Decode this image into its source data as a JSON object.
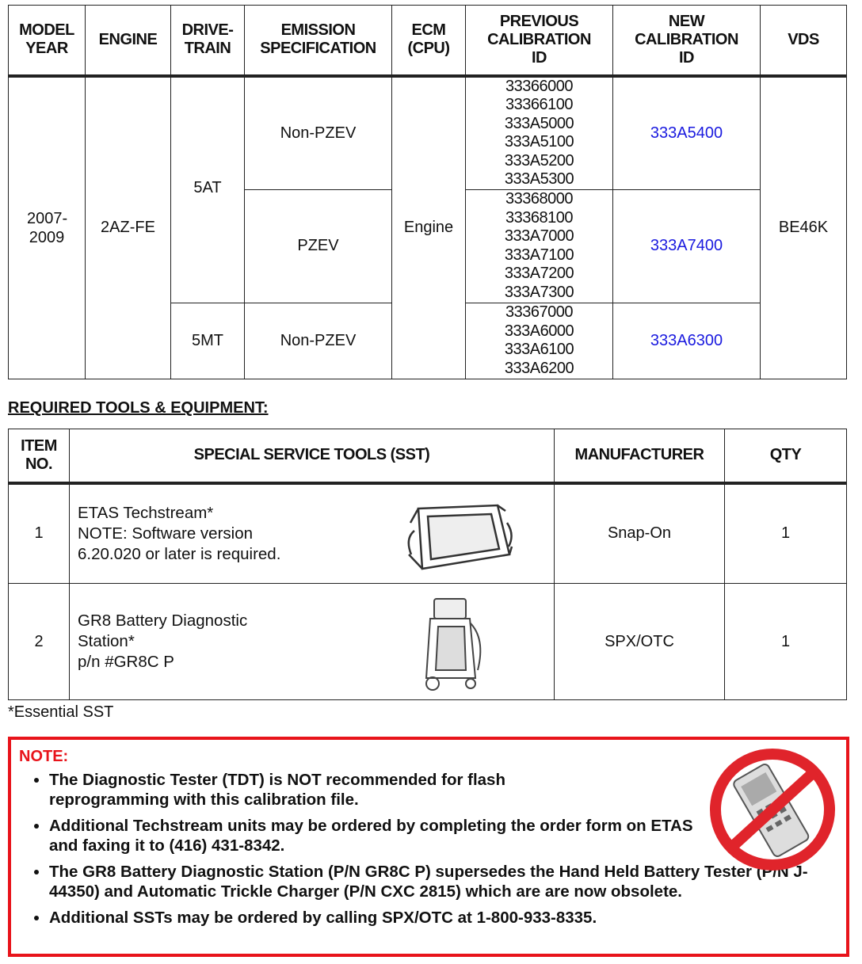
{
  "calibration_table": {
    "headers": [
      "MODEL YEAR",
      "ENGINE",
      "DRIVE-TRAIN",
      "EMISSION SPECIFICATION",
      "ECM (CPU)",
      "PREVIOUS CALIBRATION ID",
      "NEW CALIBRATION ID",
      "VDS"
    ],
    "model_year": "2007-2009",
    "engine": "2AZ-FE",
    "ecm": "Engine",
    "vds": "BE46K",
    "rows": [
      {
        "drivetrain": "5AT",
        "emission": "Non-PZEV",
        "previous": "33366000\n33366100\n333A5000\n333A5100\n333A5200\n333A5300",
        "new": "333A5400"
      },
      {
        "drivetrain": "5AT",
        "emission": "PZEV",
        "previous": "33368000\n33368100\n333A7000\n333A7100\n333A7200\n333A7300",
        "new": "333A7400"
      },
      {
        "drivetrain": "5MT",
        "emission": "Non-PZEV",
        "previous": "33367000\n333A6000\n333A6100\n333A6200",
        "new": "333A6300"
      }
    ],
    "new_id_color": "#1a1adf"
  },
  "tools_heading": "REQUIRED TOOLS & EQUIPMENT:",
  "tools_table": {
    "headers": [
      "ITEM NO.",
      "SPECIAL SERVICE TOOLS (SST)",
      "MANUFACTURER",
      "QTY"
    ],
    "rows": [
      {
        "item": "1",
        "lines": [
          "ETAS Techstream*",
          "NOTE: Software version",
          "6.20.020 or later is required."
        ],
        "manufacturer": "Snap-On",
        "qty": "1",
        "image": "techstream-tablet"
      },
      {
        "item": "2",
        "lines": [
          "GR8 Battery Diagnostic",
          "Station*",
          "p/n #GR8C P"
        ],
        "manufacturer": "SPX/OTC",
        "qty": "1",
        "image": "battery-station"
      }
    ]
  },
  "footnote": "*Essential SST",
  "note": {
    "title": "NOTE:",
    "items": [
      "The Diagnostic Tester (TDT) is NOT recommended for flash reprogramming with this calibration file.",
      "Additional Techstream units may be ordered by completing the order form on ETAS and faxing it to (416) 431-8342.",
      "The GR8 Battery Diagnostic Station (P/N GR8C P) supersedes the Hand Held Battery Tester (P/N J-44350) and Automatic Trickle Charger (P/N CXC 2815) which are are now obsolete.",
      "Additional SSTs may be ordered by calling SPX/OTC at 1-800-933-8335."
    ],
    "border_color": "#e8141b",
    "image": "no-tdt-prohibition-sign"
  }
}
